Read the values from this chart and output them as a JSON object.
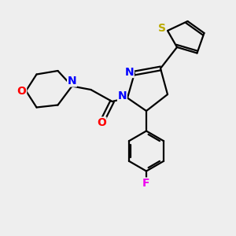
{
  "bg_color": "#eeeeee",
  "atom_colors": {
    "N": "#0000ff",
    "O": "#ff0000",
    "S": "#bbaa00",
    "F": "#ee00ee",
    "C": "#000000"
  },
  "bond_color": "#000000",
  "font_size": 10,
  "fig_size": [
    3.0,
    3.0
  ],
  "dpi": 100
}
